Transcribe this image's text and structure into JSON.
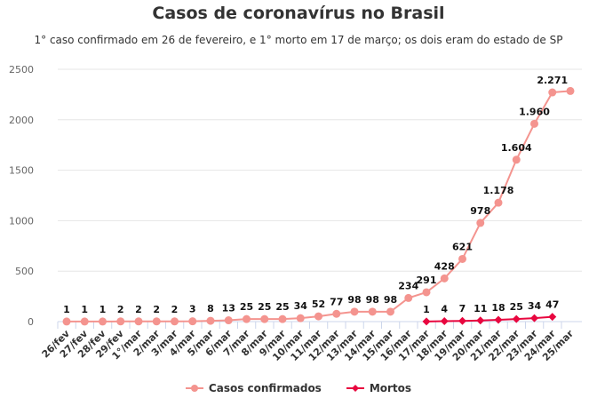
{
  "chart_data": {
    "type": "line",
    "title": "Casos de coronavírus no Brasil",
    "subtitle": "1° caso confirmado em 26 de fevereiro, e 1° morto em 17 de março; os dois eram do estado de SP",
    "categories": [
      "26/fev",
      "27/fev",
      "28/fev",
      "29/fev",
      "1°/mar",
      "2/mar",
      "3/mar",
      "4/mar",
      "5/mar",
      "6/mar",
      "7/mar",
      "8/mar",
      "9/mar",
      "10/mar",
      "11/mar",
      "12/mar",
      "13/mar",
      "14/mar",
      "15/mar",
      "16/mar",
      "17/mar",
      "18/mar",
      "19/mar",
      "20/mar",
      "21/mar",
      "22/mar",
      "23/mar",
      "24/mar",
      "25/mar"
    ],
    "ylim": [
      0,
      2500
    ],
    "yticks": [
      "0",
      "500",
      "1000",
      "1500",
      "2000",
      "2500"
    ],
    "grid": true,
    "legend_position": "bottom",
    "series": [
      {
        "name": "Casos confirmados",
        "color": "#f4948f",
        "values": [
          1,
          1,
          1,
          2,
          2,
          2,
          2,
          3,
          8,
          13,
          25,
          25,
          25,
          34,
          52,
          77,
          98,
          98,
          98,
          234,
          291,
          428,
          621,
          978,
          1178,
          1604,
          1960,
          2271,
          2285
        ],
        "labels": [
          "1",
          "1",
          "1",
          "2",
          "2",
          "2",
          "2",
          "3",
          "8",
          "13",
          "25",
          "25",
          "25",
          "34",
          "52",
          "77",
          "98",
          "98",
          "98",
          "234",
          "291",
          "428",
          "621",
          "978",
          "1.178",
          "1.604",
          "1.960",
          "2.271",
          ""
        ]
      },
      {
        "name": "Mortos",
        "color": "#e8073f",
        "values": [
          null,
          null,
          null,
          null,
          null,
          null,
          null,
          null,
          null,
          null,
          null,
          null,
          null,
          null,
          null,
          null,
          null,
          null,
          null,
          null,
          1,
          4,
          7,
          11,
          18,
          25,
          34,
          47,
          null
        ],
        "labels": [
          "",
          "",
          "",
          "",
          "",
          "",
          "",
          "",
          "",
          "",
          "",
          "",
          "",
          "",
          "",
          "",
          "",
          "",
          "",
          "",
          "1",
          "4",
          "7",
          "11",
          "18",
          "25",
          "34",
          "47",
          ""
        ]
      }
    ]
  }
}
